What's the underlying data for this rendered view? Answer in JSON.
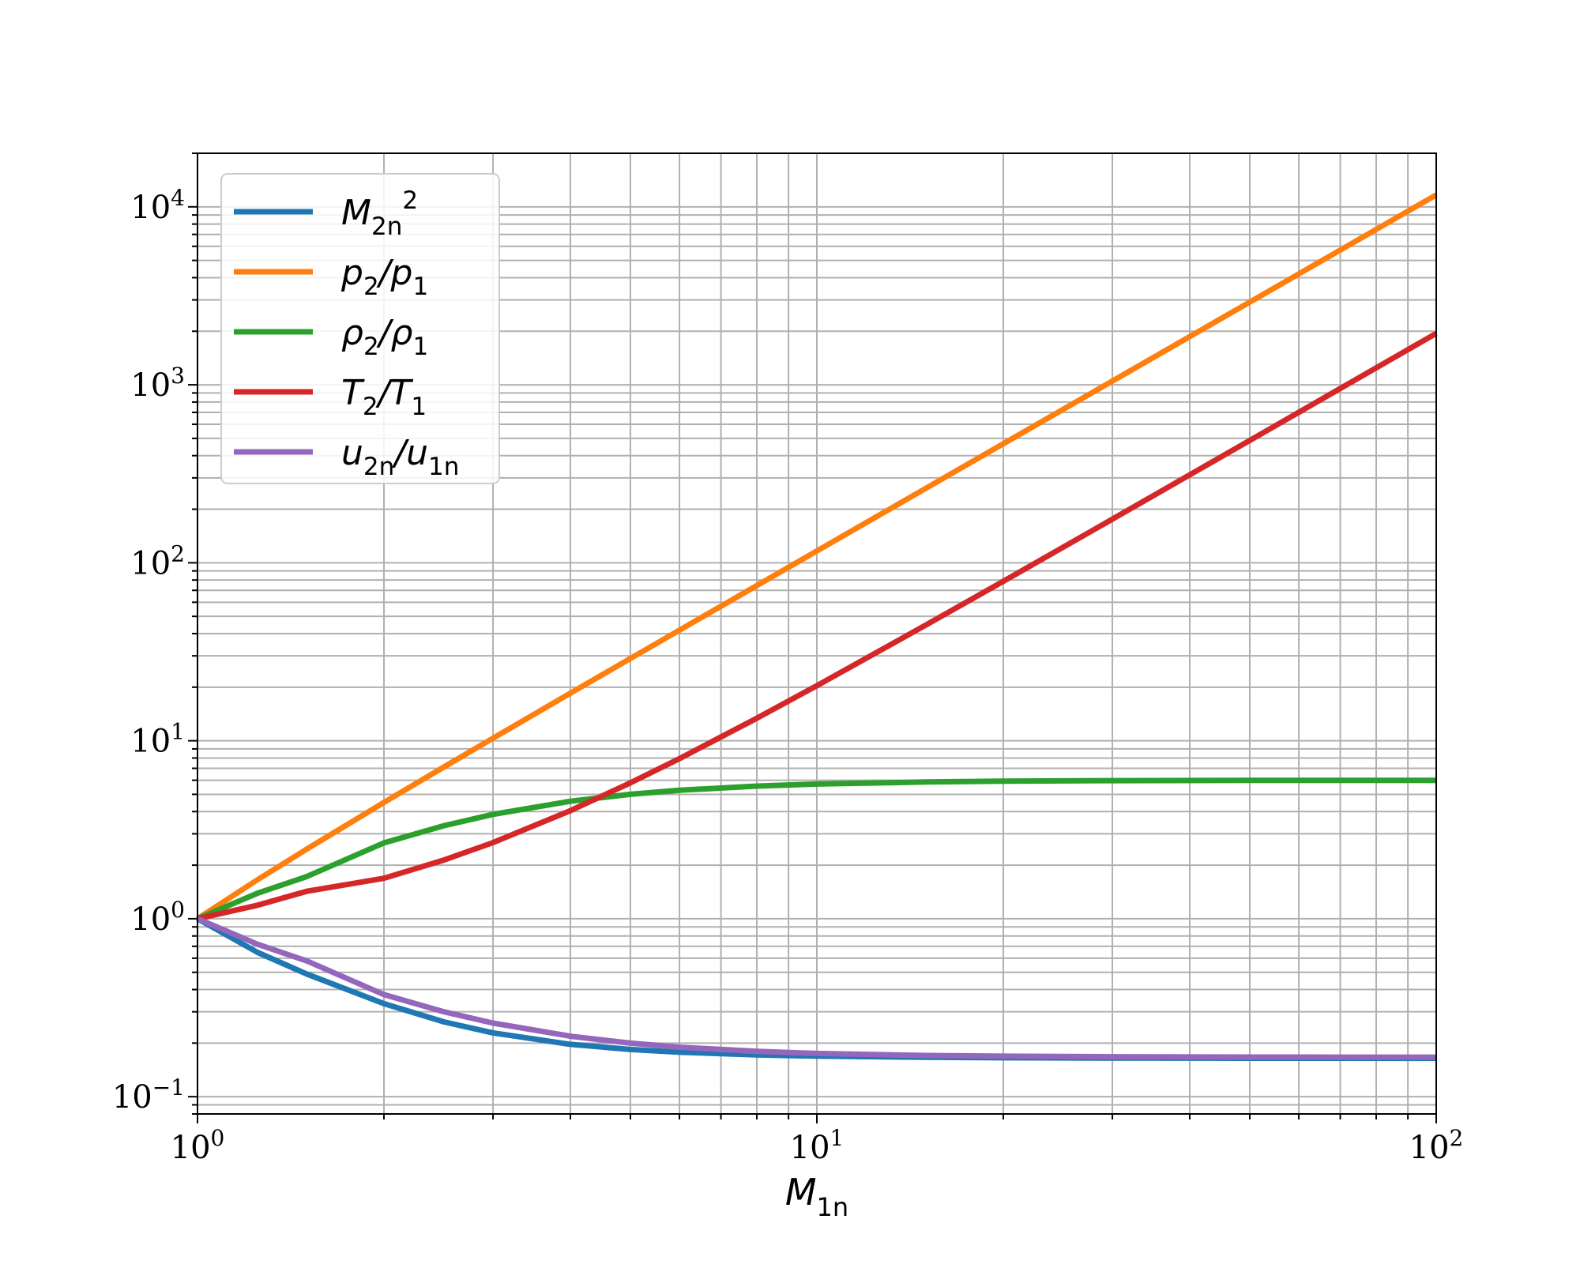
{
  "chart_data": {
    "type": "line",
    "title": "",
    "xlabel": "M_{1n}",
    "ylabel": "",
    "x_scale": "log",
    "y_scale": "log",
    "xlim": [
      1,
      100
    ],
    "ylim": [
      0.08,
      20000
    ],
    "grid": "major and minor",
    "legend_position": "top-left",
    "x_ticks": [
      {
        "value": 1,
        "base": "10",
        "exp": "0"
      },
      {
        "value": 10,
        "base": "10",
        "exp": "1"
      },
      {
        "value": 100,
        "base": "10",
        "exp": "2"
      }
    ],
    "y_ticks": [
      {
        "value": 0.1,
        "base": "10",
        "exp": "−1"
      },
      {
        "value": 1,
        "base": "10",
        "exp": "0"
      },
      {
        "value": 10,
        "base": "10",
        "exp": "1"
      },
      {
        "value": 100,
        "base": "10",
        "exp": "2"
      },
      {
        "value": 1000,
        "base": "10",
        "exp": "3"
      },
      {
        "value": 10000,
        "base": "10",
        "exp": "4"
      }
    ],
    "x": [
      1,
      1.25,
      1.5,
      2,
      2.5,
      3,
      4,
      5,
      6,
      8,
      10,
      15,
      20,
      30,
      50,
      70,
      100
    ],
    "series": [
      {
        "name": "M_{2n}^2",
        "color": "#1f77b4",
        "values": [
          1.0,
          0.6467,
          0.4894,
          0.3333,
          0.2632,
          0.2284,
          0.1968,
          0.1843,
          0.1778,
          0.1719,
          0.169,
          0.1664,
          0.1655,
          0.1648,
          0.1645,
          0.1644,
          0.1643
        ]
      },
      {
        "name": "p_2/p_1",
        "color": "#ff7f0e",
        "values": [
          1.0,
          1.6563,
          2.4583,
          4.5,
          7.125,
          10.333,
          18.5,
          29.0,
          41.833,
          74.5,
          116.5,
          262.33,
          466.5,
          1049.8,
          2916.5,
          5716.5,
          11666.5
        ]
      },
      {
        "name": "ρ_2/ρ_1",
        "color": "#2ca02c",
        "values": [
          1.0,
          1.3913,
          1.7241,
          2.6667,
          3.3333,
          3.8571,
          4.5714,
          5.0,
          5.2683,
          5.5652,
          5.7143,
          5.8696,
          5.9259,
          5.9669,
          5.988,
          5.9939,
          5.997
        ]
      },
      {
        "name": "T_2/T_1",
        "color": "#d62728",
        "values": [
          1.0,
          1.1906,
          1.4259,
          1.6875,
          2.1375,
          2.679,
          4.0469,
          5.8,
          7.9406,
          13.387,
          20.388,
          44.694,
          78.722,
          175.94,
          487.06,
          953.7,
          1945.3
        ]
      },
      {
        "name": "u_{2n}/u_{1n}",
        "color": "#9467bd",
        "values": [
          1.0,
          0.7188,
          0.58,
          0.375,
          0.3,
          0.2593,
          0.2188,
          0.2,
          0.1898,
          0.1797,
          0.175,
          0.1704,
          0.1688,
          0.1676,
          0.167,
          0.1668,
          0.1668
        ]
      }
    ]
  }
}
